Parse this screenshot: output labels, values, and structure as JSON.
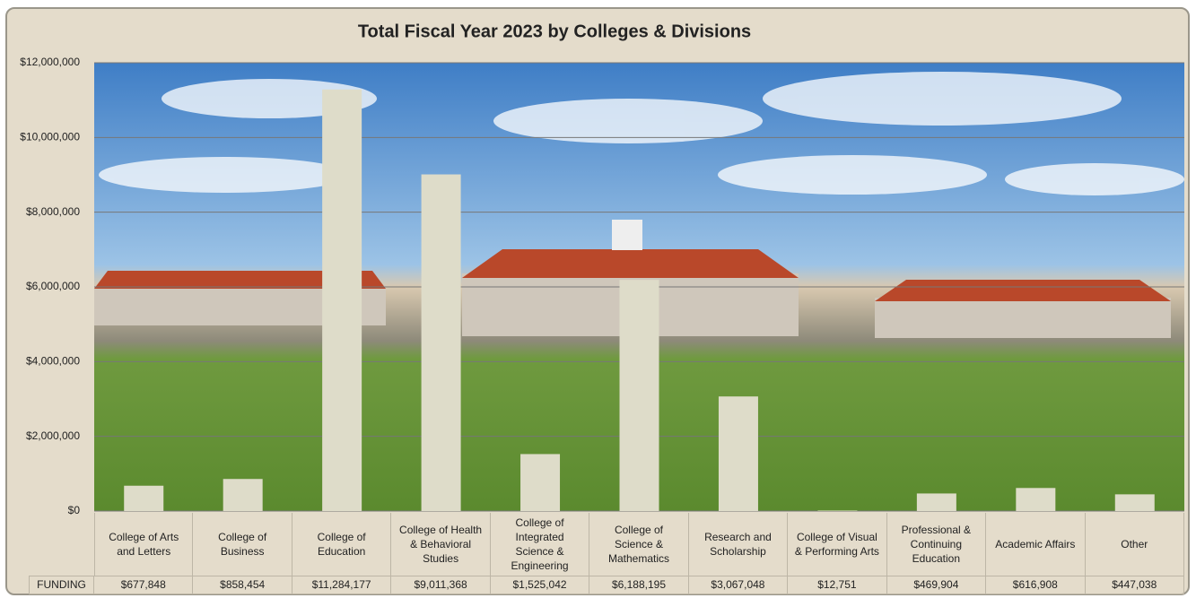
{
  "chart_data": {
    "type": "bar",
    "title": "Total Fiscal Year 2023 by Colleges & Divisions",
    "categories": [
      "College of Arts and Letters",
      "College of Business",
      "College of Education",
      "College of Health & Behavioral Studies",
      "College of Integrated Science & Engineering",
      "College of Science & Mathematics",
      "Research and Scholarship",
      "College of Visual & Performing Arts",
      "Professional & Continuing Education",
      "Academic Affairs",
      "Other"
    ],
    "values": [
      677848,
      858454,
      11284177,
      9011368,
      1525042,
      6188195,
      3067048,
      12751,
      469904,
      616908,
      447038
    ],
    "value_labels": [
      "$677,848",
      "$858,454",
      "$11,284,177",
      "$9,011,368",
      "$1,525,042",
      "$6,188,195",
      "$3,067,048",
      "$12,751",
      "$469,904",
      "$616,908",
      "$447,038"
    ],
    "table_row_label": "FUNDING",
    "color": "#dedcc9",
    "ylim": [
      0,
      12000000
    ],
    "yticks": [
      {
        "value": 0,
        "label": "$0"
      },
      {
        "value": 2000000,
        "label": "$2,000,000"
      },
      {
        "value": 4000000,
        "label": "$4,000,000"
      },
      {
        "value": 6000000,
        "label": "$6,000,000"
      },
      {
        "value": 8000000,
        "label": "$8,000,000"
      },
      {
        "value": 10000000,
        "label": "$10,000,000"
      },
      {
        "value": 12000000,
        "label": "$12,000,000"
      }
    ],
    "grid": true
  }
}
